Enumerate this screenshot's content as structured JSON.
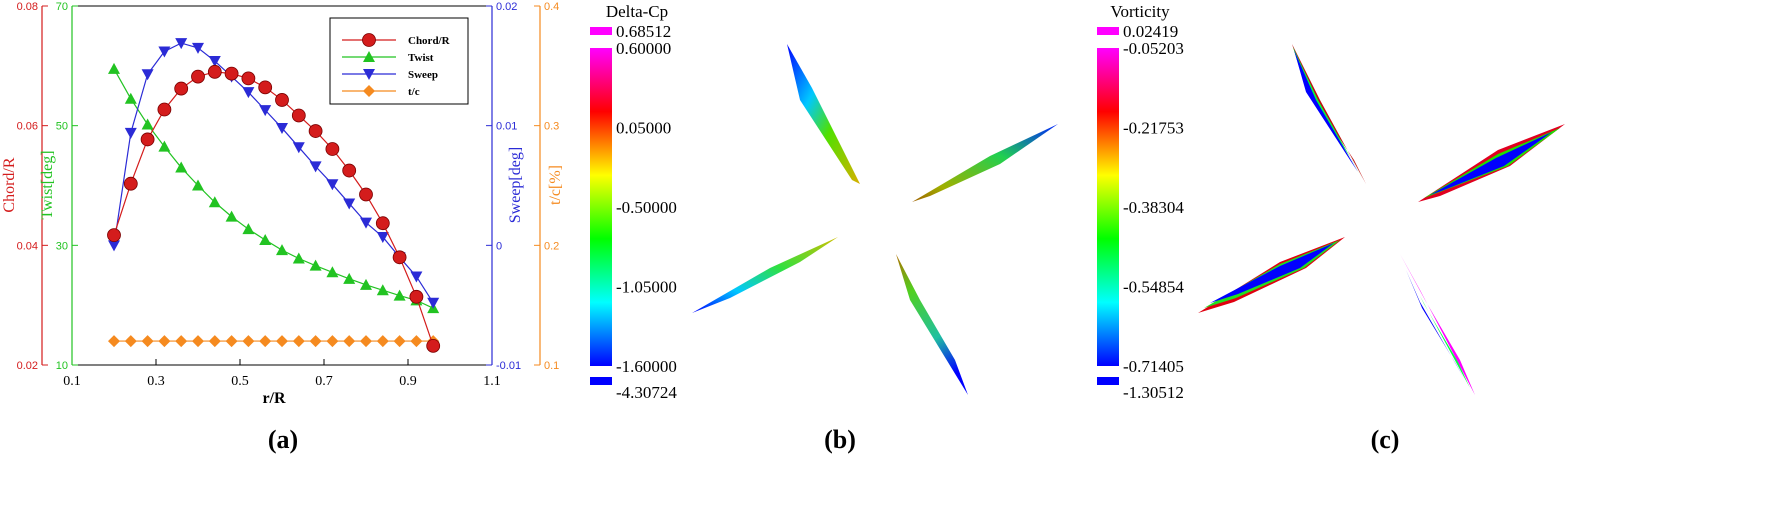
{
  "chart_data": [
    {
      "type": "line",
      "panel_label": "(a)",
      "xlabel": "r/R",
      "xlim": [
        0.1,
        1.1
      ],
      "xticks": [
        "0.1",
        "0.3",
        "0.5",
        "0.7",
        "0.9",
        "1.1"
      ],
      "axes": [
        {
          "id": "chord",
          "label": "Chord/R",
          "color": "#d41c1c",
          "ylim": [
            0.02,
            0.08
          ],
          "ticks": [
            "0.02",
            "0.04",
            "0.06",
            "0.08"
          ],
          "tick_values": [
            0.02,
            0.04,
            0.06,
            0.08
          ]
        },
        {
          "id": "twist",
          "label": "Twist[deg]",
          "color": "#22c322",
          "ylim": [
            10,
            70
          ],
          "ticks": [
            "10",
            "30",
            "50",
            "70"
          ],
          "tick_values": [
            10,
            30,
            50,
            70
          ]
        },
        {
          "id": "sweep",
          "label": "Sweep[deg]",
          "color": "#2b2bd6",
          "ylim": [
            -0.01,
            0.02
          ],
          "ticks": [
            "-0.01",
            "0",
            "0.01",
            "0.02"
          ],
          "tick_values": [
            -0.01,
            0,
            0.01,
            0.02
          ]
        },
        {
          "id": "tc",
          "label": "t/c[%]",
          "color": "#f58a1f",
          "ylim": [
            0.1,
            0.4
          ],
          "ticks": [
            "0.1",
            "0.2",
            "0.3",
            "0.4"
          ],
          "tick_values": [
            0.1,
            0.2,
            0.3,
            0.4
          ]
        }
      ],
      "legend_position": "top-right",
      "series": [
        {
          "name": "Chord/R",
          "axis": "chord",
          "marker": "circle",
          "color": "#d41c1c",
          "x": [
            0.2,
            0.24,
            0.28,
            0.32,
            0.36,
            0.4,
            0.44,
            0.48,
            0.52,
            0.56,
            0.6,
            0.64,
            0.68,
            0.72,
            0.76,
            0.8,
            0.84,
            0.88,
            0.92,
            0.96
          ],
          "y": [
            0.0417,
            0.0503,
            0.0577,
            0.0627,
            0.0662,
            0.0682,
            0.069,
            0.0687,
            0.0679,
            0.0664,
            0.0643,
            0.0617,
            0.0591,
            0.0561,
            0.0525,
            0.0485,
            0.0437,
            0.038,
            0.0314,
            0.0232
          ]
        },
        {
          "name": "Twist",
          "axis": "twist",
          "marker": "triangle-up",
          "color": "#22c322",
          "x": [
            0.2,
            0.24,
            0.28,
            0.32,
            0.36,
            0.4,
            0.44,
            0.48,
            0.52,
            0.56,
            0.6,
            0.64,
            0.68,
            0.72,
            0.76,
            0.8,
            0.84,
            0.88,
            0.92,
            0.96
          ],
          "y": [
            59.5,
            54.5,
            50.2,
            46.5,
            43.0,
            40.0,
            37.2,
            34.8,
            32.7,
            30.9,
            29.2,
            27.8,
            26.6,
            25.5,
            24.4,
            23.4,
            22.5,
            21.6,
            20.8,
            19.5
          ]
        },
        {
          "name": "Sweep",
          "axis": "sweep",
          "marker": "triangle-down",
          "color": "#2b2bd6",
          "x": [
            0.2,
            0.24,
            0.28,
            0.32,
            0.36,
            0.4,
            0.44,
            0.48,
            0.52,
            0.56,
            0.6,
            0.64,
            0.68,
            0.72,
            0.76,
            0.8,
            0.84,
            0.88,
            0.92,
            0.96
          ],
          "y": [
            0.0,
            0.0094,
            0.0143,
            0.0162,
            0.0169,
            0.0165,
            0.0154,
            0.0141,
            0.0128,
            0.0113,
            0.0098,
            0.0082,
            0.0066,
            0.0051,
            0.0035,
            0.0019,
            0.0007,
            -0.001,
            -0.0026,
            -0.0048
          ]
        },
        {
          "name": "t/c",
          "axis": "tc",
          "marker": "diamond",
          "color": "#f58a1f",
          "x": [
            0.2,
            0.24,
            0.28,
            0.32,
            0.36,
            0.4,
            0.44,
            0.48,
            0.52,
            0.56,
            0.6,
            0.64,
            0.68,
            0.72,
            0.76,
            0.8,
            0.84,
            0.88,
            0.92,
            0.96
          ],
          "y": [
            0.12,
            0.12,
            0.12,
            0.12,
            0.12,
            0.12,
            0.12,
            0.12,
            0.12,
            0.12,
            0.12,
            0.12,
            0.12,
            0.12,
            0.12,
            0.12,
            0.12,
            0.12,
            0.12,
            0.12
          ]
        }
      ]
    },
    {
      "type": "heatmap",
      "panel_label": "(b)",
      "colorbar": {
        "title": "Delta-Cp",
        "max_label": "0.68512",
        "min_label": "-4.30724",
        "tick_labels": [
          "0.60000",
          "0.05000",
          "-0.50000",
          "-1.05000",
          "-1.60000"
        ],
        "tick_values": [
          0.6,
          0.05,
          -0.5,
          -1.05,
          -1.6
        ],
        "range": [
          -1.6,
          0.6
        ],
        "colors": [
          "#0000ff",
          "#00ffff",
          "#00ff00",
          "#ffff00",
          "#ff0000",
          "#ff00ff"
        ]
      }
    },
    {
      "type": "heatmap",
      "panel_label": "(c)",
      "colorbar": {
        "title": "Vorticity",
        "max_label": "0.02419",
        "min_label": "-1.30512",
        "tick_labels": [
          "-0.05203",
          "-0.21753",
          "-0.38304",
          "-0.54854",
          "-0.71405"
        ],
        "tick_values": [
          -0.05203,
          -0.21753,
          -0.38304,
          -0.54854,
          -0.71405
        ],
        "range": [
          -0.71405,
          -0.05203
        ],
        "colors": [
          "#0000ff",
          "#00ffff",
          "#00ff00",
          "#ffff00",
          "#ff0000",
          "#ff00ff"
        ]
      }
    }
  ]
}
